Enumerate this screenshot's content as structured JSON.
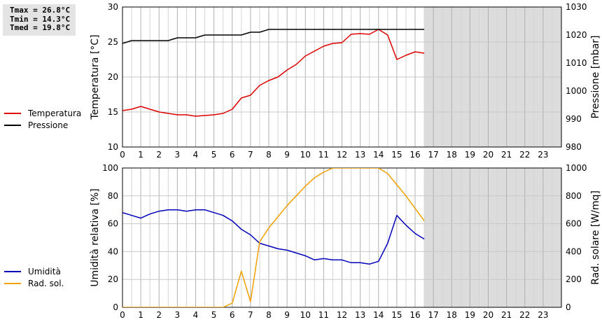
{
  "stats": {
    "tmax": "Tmax = 26.8°C",
    "tmin": "Tmin = 14.3°C",
    "tmed": "Tmed = 19.8°C"
  },
  "legend_top": [
    {
      "label": "Temperatura",
      "color": "#dd0000"
    },
    {
      "label": "Pressione",
      "color": "#000000"
    }
  ],
  "legend_bottom": [
    {
      "label": "Umidità",
      "color": "#0000bb"
    },
    {
      "label": "Rad. sol.",
      "color": "#f0a000"
    }
  ],
  "chart_data": [
    {
      "type": "line",
      "xlabel": "",
      "ylabel": "Temperatura [°C]",
      "y2label": "Pressione [mbar]",
      "xlim": [
        0,
        24
      ],
      "ylim": [
        10,
        30
      ],
      "y2lim": [
        980,
        1030
      ],
      "xticks": [
        0,
        1,
        2,
        3,
        4,
        5,
        6,
        7,
        8,
        9,
        10,
        11,
        12,
        13,
        14,
        15,
        16,
        17,
        18,
        19,
        20,
        21,
        22,
        23
      ],
      "yticks": [
        10,
        15,
        20,
        25,
        30
      ],
      "y2ticks": [
        980,
        990,
        1000,
        1010,
        1020,
        1030
      ],
      "no_data_from": 16.5,
      "grid": true,
      "series": [
        {
          "name": "Temperatura",
          "axis": "left",
          "color": "#dd0000",
          "x": [
            0,
            0.5,
            1,
            1.5,
            2,
            2.5,
            3,
            3.5,
            4,
            4.5,
            5,
            5.5,
            6,
            6.5,
            7,
            7.5,
            8,
            8.5,
            9,
            9.5,
            10,
            10.5,
            11,
            11.5,
            12,
            12.5,
            13,
            13.5,
            14,
            14.5,
            15,
            15.5,
            16,
            16.5
          ],
          "y": [
            15.2,
            15.4,
            15.8,
            15.4,
            15.0,
            14.8,
            14.6,
            14.6,
            14.4,
            14.5,
            14.6,
            14.8,
            15.4,
            17.0,
            17.4,
            18.8,
            19.5,
            20.0,
            21.0,
            21.8,
            23.0,
            23.7,
            24.4,
            24.8,
            24.9,
            26.1,
            26.2,
            26.1,
            26.8,
            26.0,
            22.5,
            23.1,
            23.6,
            23.4
          ]
        },
        {
          "name": "Pressione",
          "axis": "right",
          "color": "#000000",
          "x": [
            0,
            0.5,
            2.5,
            3,
            3.5,
            4,
            4.5,
            6,
            6.5,
            7,
            7.5,
            8,
            8.5,
            16.5
          ],
          "y": [
            1017,
            1018,
            1018,
            1019,
            1019,
            1019,
            1020,
            1020,
            1020,
            1021,
            1021,
            1022,
            1022,
            1022
          ]
        }
      ]
    },
    {
      "type": "line",
      "xlabel": "",
      "ylabel": "Umidità relativa [%]",
      "y2label": "Rad. solare [W/mq]",
      "xlim": [
        0,
        24
      ],
      "ylim": [
        0,
        100
      ],
      "y2lim": [
        0,
        1000
      ],
      "xticks": [
        0,
        1,
        2,
        3,
        4,
        5,
        6,
        7,
        8,
        9,
        10,
        11,
        12,
        13,
        14,
        15,
        16,
        17,
        18,
        19,
        20,
        21,
        22,
        23
      ],
      "yticks": [
        0,
        20,
        40,
        60,
        80,
        100
      ],
      "y2ticks": [
        0,
        200,
        400,
        600,
        800,
        1000
      ],
      "no_data_from": 16.5,
      "grid": true,
      "series": [
        {
          "name": "Umidità",
          "axis": "left",
          "color": "#0000bb",
          "x": [
            0,
            0.5,
            1,
            1.5,
            2,
            2.5,
            3,
            3.5,
            4,
            4.5,
            5,
            5.5,
            6,
            6.5,
            7,
            7.5,
            8,
            8.5,
            9,
            9.5,
            10,
            10.5,
            11,
            11.5,
            12,
            12.5,
            13,
            13.5,
            14,
            14.5,
            15,
            15.5,
            16,
            16.5
          ],
          "y": [
            68,
            66,
            64,
            67,
            69,
            70,
            70,
            69,
            70,
            70,
            68,
            66,
            62,
            56,
            52,
            46,
            44,
            42,
            41,
            39,
            37,
            34,
            35,
            34,
            34,
            32,
            32,
            31,
            33,
            46,
            66,
            59,
            53,
            49
          ]
        },
        {
          "name": "Rad. sol.",
          "axis": "right",
          "color": "#f0a000",
          "x": [
            0,
            1,
            2,
            3,
            4,
            5,
            5.5,
            6,
            6.5,
            7,
            7.5,
            8,
            8.5,
            9,
            9.5,
            10,
            10.5,
            11,
            11.5,
            12,
            12.5,
            13,
            13.5,
            14,
            14.5,
            15,
            15.5,
            16,
            16.5
          ],
          "y": [
            0,
            0,
            0,
            0,
            0,
            0,
            0,
            30,
            260,
            40,
            470,
            570,
            650,
            730,
            800,
            870,
            930,
            970,
            1000,
            1000,
            1000,
            1000,
            1000,
            1000,
            960,
            880,
            800,
            710,
            620
          ]
        }
      ]
    }
  ]
}
